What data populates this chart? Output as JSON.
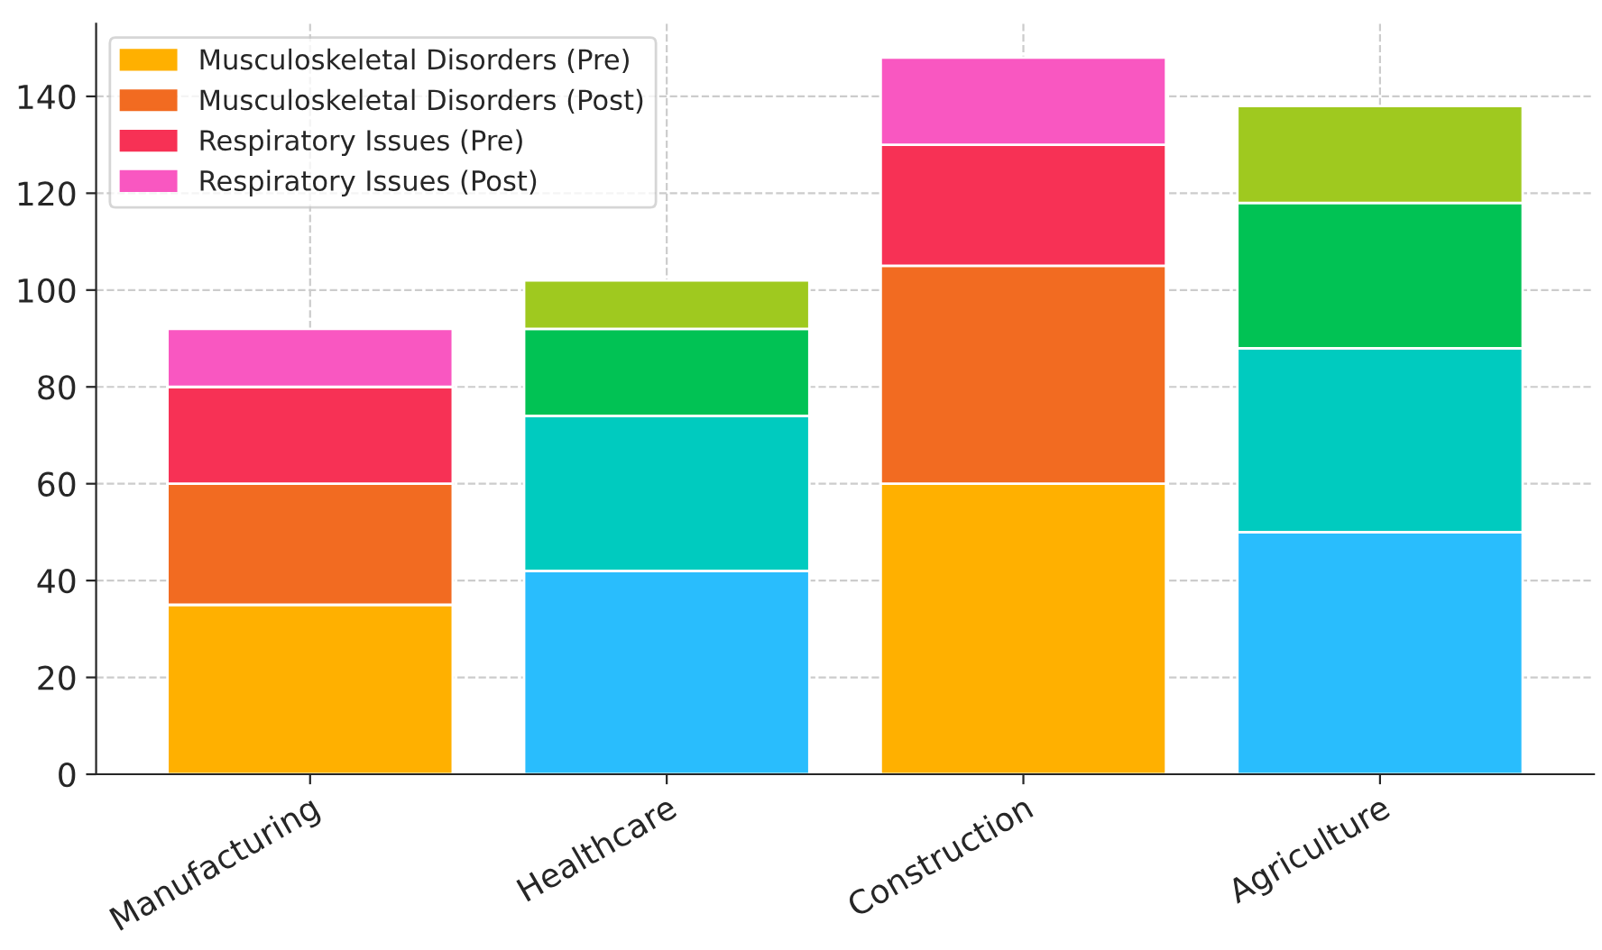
{
  "chart_data": {
    "type": "bar",
    "stacked": true,
    "categories": [
      "Manufacturing",
      "Healthcare",
      "Construction",
      "Agriculture"
    ],
    "series": [
      {
        "name": "Musculoskeletal Disorders (Pre)",
        "colors": [
          "#ffb000",
          "#29bdfd",
          "#ffb000",
          "#29bdfd"
        ],
        "values": [
          35,
          42,
          60,
          50
        ]
      },
      {
        "name": "Musculoskeletal Disorders (Post)",
        "colors": [
          "#f26b21",
          "#00cbbf",
          "#f26b21",
          "#00cbbf"
        ],
        "values": [
          25,
          32,
          45,
          38
        ]
      },
      {
        "name": "Respiratory Issues (Pre)",
        "colors": [
          "#f73155",
          "#01c254",
          "#f73155",
          "#01c254"
        ],
        "values": [
          20,
          18,
          25,
          30
        ]
      },
      {
        "name": "Respiratory Issues (Post)",
        "colors": [
          "#f957c1",
          "#9fc91f",
          "#f957c1",
          "#9fc91f"
        ],
        "values": [
          12,
          10,
          18,
          20
        ]
      }
    ],
    "ylim": [
      0,
      155
    ],
    "yticks": [
      0,
      20,
      40,
      60,
      80,
      100,
      120,
      140
    ],
    "grid": true,
    "legend": "top left"
  }
}
